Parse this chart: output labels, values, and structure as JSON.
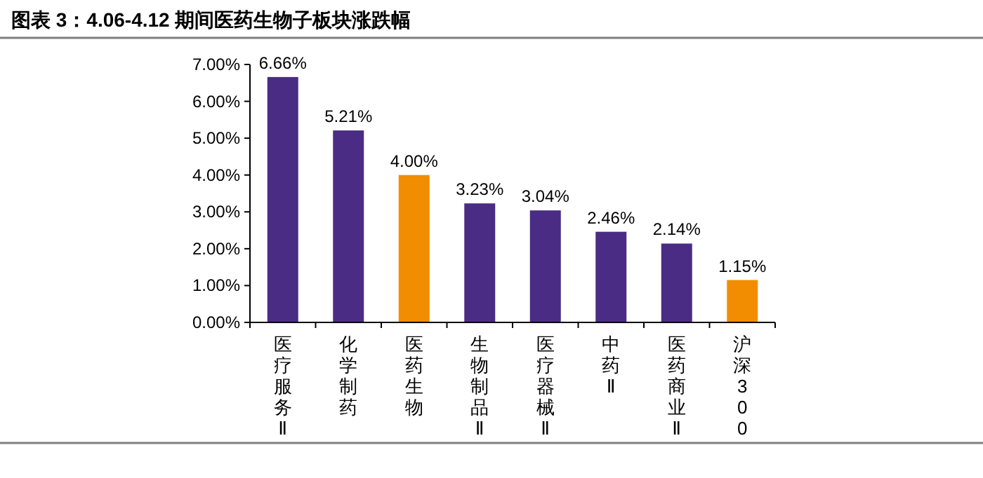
{
  "chart_data": {
    "type": "bar",
    "title": "图表 3：4.06-4.12 期间医药生物子板块涨跌幅",
    "categories": [
      "医疗服务Ⅱ",
      "化学制药",
      "医药生物",
      "生物制品Ⅱ",
      "医疗器械Ⅱ",
      "中药Ⅱ",
      "医药商业Ⅱ",
      "沪深300"
    ],
    "values": [
      6.66,
      5.21,
      4.0,
      3.23,
      3.04,
      2.46,
      2.14,
      1.15
    ],
    "colors": [
      "#4b2c84",
      "#4b2c84",
      "#f28c00",
      "#4b2c84",
      "#4b2c84",
      "#4b2c84",
      "#4b2c84",
      "#f28c00"
    ],
    "value_labels": [
      "6.66%",
      "5.21%",
      "4.00%",
      "3.23%",
      "3.04%",
      "2.46%",
      "2.14%",
      "1.15%"
    ],
    "ylim": [
      0,
      7
    ],
    "yticks": [
      {
        "value": 0,
        "label": "0.00%"
      },
      {
        "value": 1,
        "label": "1.00%"
      },
      {
        "value": 2,
        "label": "2.00%"
      },
      {
        "value": 3,
        "label": "3.00%"
      },
      {
        "value": 4,
        "label": "4.00%"
      },
      {
        "value": 5,
        "label": "5.00%"
      },
      {
        "value": 6,
        "label": "6.00%"
      },
      {
        "value": 7,
        "label": "7.00%"
      }
    ],
    "grid": false
  }
}
